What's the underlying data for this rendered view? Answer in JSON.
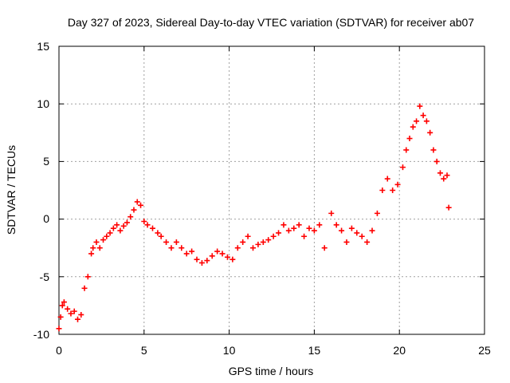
{
  "chart_data": {
    "type": "scatter",
    "title": "Day 327 of 2023, Sidereal Day-to-day VTEC variation (SDTVAR) for receiver ab07",
    "xlabel": "GPS time / hours",
    "ylabel": "SDTVAR / TECUs",
    "xlim": [
      0,
      25
    ],
    "ylim": [
      -10,
      15
    ],
    "xticks": [
      "0",
      "5",
      "10",
      "15",
      "20",
      "25"
    ],
    "yticks": [
      "-10",
      "-5",
      "0",
      "5",
      "10",
      "15"
    ],
    "grid": true,
    "marker": "+",
    "series": [
      {
        "name": "SDTVAR",
        "color": "#ff0000",
        "x": [
          0.0,
          0.1,
          0.2,
          0.3,
          0.5,
          0.7,
          0.9,
          1.1,
          1.3,
          1.5,
          1.7,
          1.9,
          2.0,
          2.2,
          2.4,
          2.6,
          2.8,
          3.0,
          3.2,
          3.4,
          3.6,
          3.8,
          4.0,
          4.2,
          4.4,
          4.6,
          4.8,
          5.0,
          5.2,
          5.5,
          5.8,
          6.0,
          6.3,
          6.6,
          6.9,
          7.2,
          7.5,
          7.8,
          8.1,
          8.4,
          8.7,
          9.0,
          9.3,
          9.6,
          9.9,
          10.2,
          10.5,
          10.8,
          11.1,
          11.4,
          11.7,
          12.0,
          12.3,
          12.6,
          12.9,
          13.2,
          13.5,
          13.8,
          14.1,
          14.4,
          14.7,
          15.0,
          15.3,
          15.6,
          16.0,
          16.3,
          16.6,
          16.9,
          17.2,
          17.5,
          17.8,
          18.1,
          18.4,
          18.7,
          19.0,
          19.3,
          19.6,
          19.9,
          20.2,
          20.4,
          20.6,
          20.8,
          21.0,
          21.2,
          21.4,
          21.6,
          21.8,
          22.0,
          22.2,
          22.4,
          22.6,
          22.8,
          22.9
        ],
        "y": [
          -9.5,
          -8.5,
          -7.5,
          -7.2,
          -7.8,
          -8.2,
          -8.0,
          -8.7,
          -8.3,
          -6.0,
          -5.0,
          -3.0,
          -2.5,
          -2.0,
          -2.5,
          -1.8,
          -1.5,
          -1.2,
          -0.8,
          -0.5,
          -1.0,
          -0.6,
          -0.3,
          0.2,
          0.8,
          1.5,
          1.2,
          -0.2,
          -0.5,
          -0.8,
          -1.2,
          -1.5,
          -2.0,
          -2.5,
          -2.0,
          -2.5,
          -3.0,
          -2.8,
          -3.5,
          -3.8,
          -3.6,
          -3.2,
          -2.8,
          -3.0,
          -3.3,
          -3.5,
          -2.5,
          -2.0,
          -1.5,
          -2.5,
          -2.2,
          -2.0,
          -1.8,
          -1.5,
          -1.2,
          -0.5,
          -1.0,
          -0.8,
          -0.5,
          -1.5,
          -0.8,
          -1.0,
          -0.5,
          -2.5,
          0.5,
          -0.5,
          -1.0,
          -2.0,
          -0.8,
          -1.2,
          -1.5,
          -2.0,
          -1.0,
          0.5,
          2.5,
          3.5,
          2.5,
          3.0,
          4.5,
          6.0,
          7.0,
          8.0,
          8.5,
          9.8,
          9.0,
          8.5,
          7.5,
          6.0,
          5.0,
          4.0,
          3.5,
          3.8,
          1.0
        ]
      }
    ]
  }
}
